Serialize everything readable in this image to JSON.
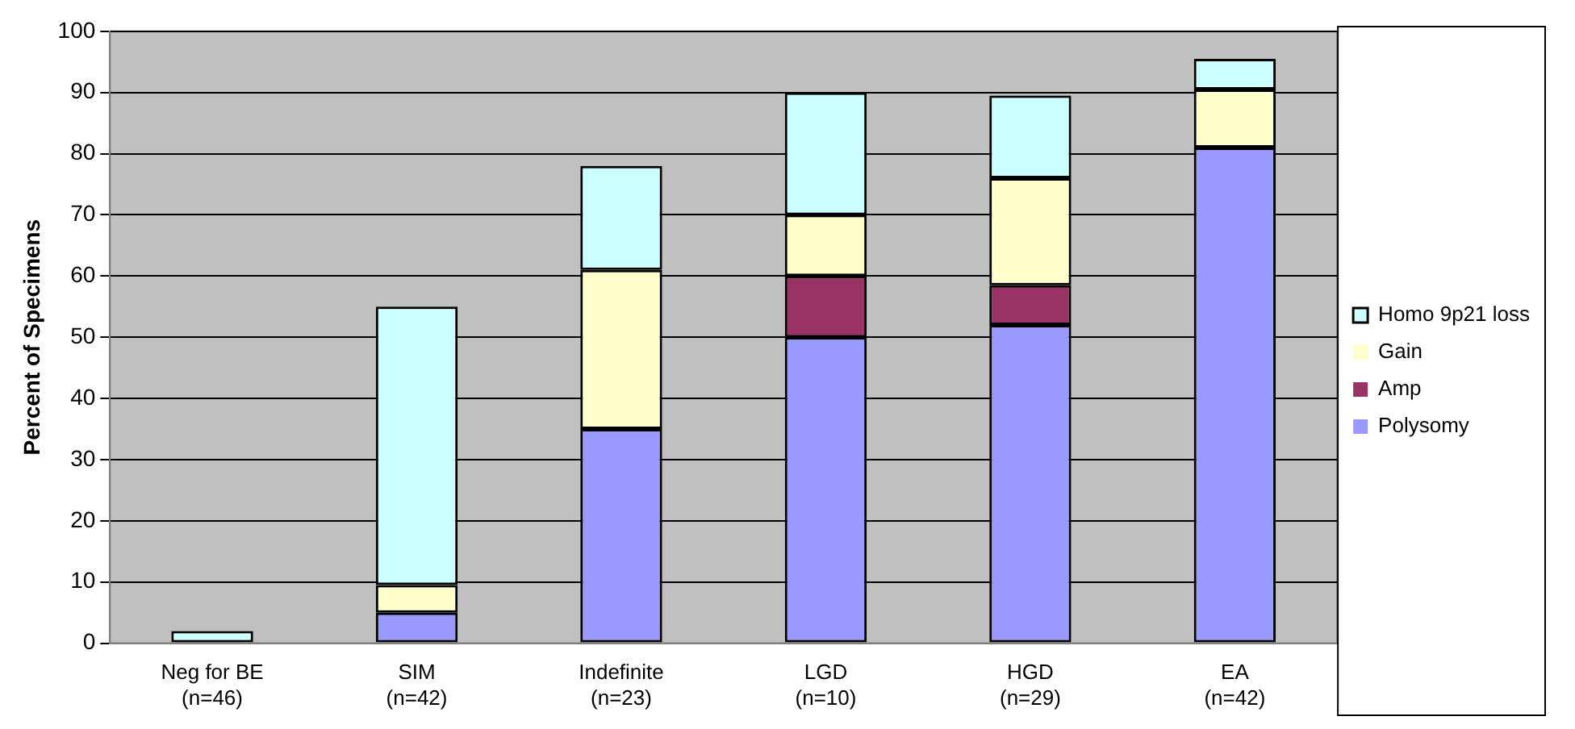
{
  "chart_data": {
    "type": "bar",
    "ylabel": "Percent of Specimens",
    "categories": [
      "Neg for BE\n(n=46)",
      "SIM\n(n=42)",
      "Indefinite\n(n=23)",
      "LGD\n(n=10)",
      "HGD\n(n=29)",
      "EA\n(n=42)"
    ],
    "stacked": true,
    "series": [
      {
        "name": "Polysomy",
        "color": "#9999ff",
        "values": [
          0,
          5,
          35,
          50,
          52,
          81
        ]
      },
      {
        "name": "Amp",
        "color": "#993366",
        "values": [
          0,
          0,
          0,
          10,
          6.5,
          0
        ]
      },
      {
        "name": "Gain",
        "color": "#ffffcc",
        "values": [
          0,
          4.5,
          26,
          10,
          17.5,
          9.5
        ]
      },
      {
        "name": "Homo 9p21 loss",
        "color": "#ccffff",
        "values": [
          2,
          45.5,
          17,
          20,
          13.5,
          5
        ]
      }
    ],
    "ylim": [
      0,
      100
    ],
    "yticks": [
      0,
      10,
      20,
      30,
      40,
      50,
      60,
      70,
      80,
      90,
      100
    ],
    "grid": "y",
    "legend": "right"
  }
}
